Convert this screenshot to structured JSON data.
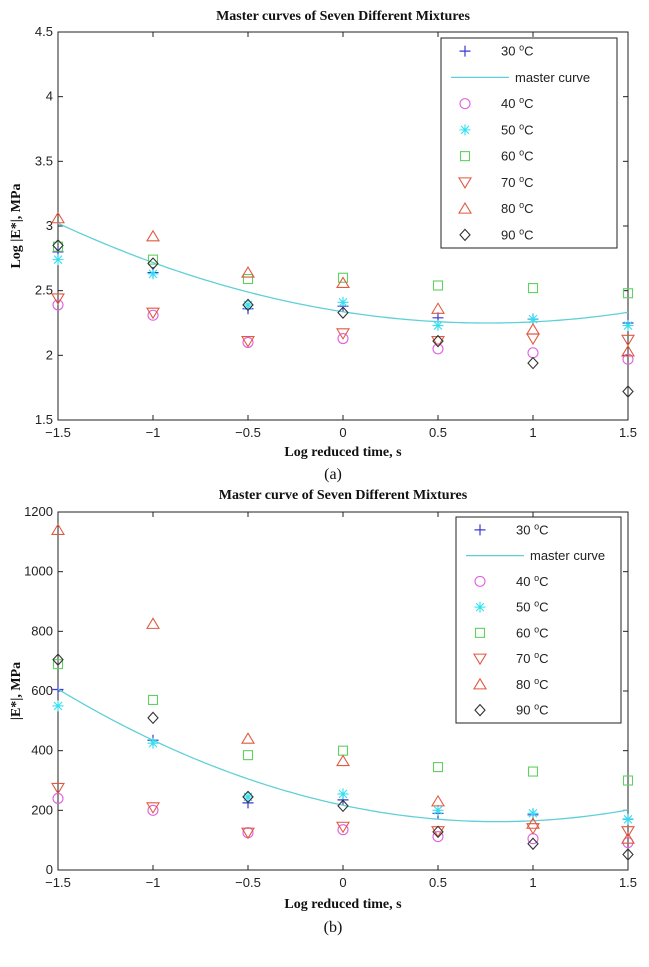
{
  "chart_data": [
    {
      "type": "scatter",
      "title": "Master curves of Seven Different Mixtures",
      "xlabel": "Log reduced time, s",
      "ylabel": "Log |E*|, MPa",
      "xlim": [
        -1.5,
        1.5
      ],
      "ylim": [
        1.5,
        4.5
      ],
      "xticks": [
        "-1.5",
        "-1",
        "-0.5",
        "0",
        "0.5",
        "1",
        "1.5"
      ],
      "yticks": [
        "1.5",
        "2",
        "2.5",
        "3",
        "3.5",
        "4",
        "4.5"
      ],
      "caption": "(a)",
      "legend_position": "top-right",
      "x": [
        -1.5,
        -1,
        -0.5,
        0,
        0.5,
        1,
        1.5
      ],
      "series": [
        {
          "name": "30 °C",
          "marker": "plus",
          "color": "#3a3ad0",
          "values": [
            2.8,
            2.64,
            2.36,
            2.38,
            2.29,
            2.28,
            2.25
          ]
        },
        {
          "name": "master curve",
          "marker": "line",
          "color": "#5fd0d8",
          "curve": {
            "a": 2.337,
            "b": -0.2295,
            "c": 0.151
          }
        },
        {
          "name": "40 °C",
          "marker": "circle",
          "color": "#e060e0",
          "values": [
            2.39,
            2.31,
            2.1,
            2.13,
            2.05,
            2.02,
            1.97
          ]
        },
        {
          "name": "50 °C",
          "marker": "asterisk",
          "color": "#30e0f0",
          "values": [
            2.74,
            2.63,
            2.39,
            2.41,
            2.23,
            2.28,
            2.23
          ]
        },
        {
          "name": "60 °C",
          "marker": "square",
          "color": "#60d060",
          "values": [
            2.84,
            2.74,
            2.59,
            2.6,
            2.54,
            2.52,
            2.48
          ]
        },
        {
          "name": "70 °C",
          "marker": "triangle-down",
          "color": "#e05a40",
          "values": [
            2.44,
            2.33,
            2.11,
            2.17,
            2.11,
            2.13,
            2.12
          ]
        },
        {
          "name": "80 °C",
          "marker": "triangle-up",
          "color": "#e05a40",
          "values": [
            3.06,
            2.92,
            2.64,
            2.56,
            2.36,
            2.2,
            2.03
          ]
        },
        {
          "name": "90 °C",
          "marker": "diamond",
          "color": "#333333",
          "values": [
            2.85,
            2.71,
            2.39,
            2.33,
            2.11,
            1.94,
            1.72
          ]
        }
      ]
    },
    {
      "type": "scatter",
      "title": "Master curve of Seven Different Mixtures",
      "xlabel": "Log reduced time, s",
      "ylabel": "|E*|, MPa",
      "xlim": [
        -1.5,
        1.5
      ],
      "ylim": [
        0,
        1200
      ],
      "xticks": [
        "-1.5",
        "-1",
        "-0.5",
        "0",
        "0.5",
        "1",
        "1.5"
      ],
      "yticks": [
        "0",
        "200",
        "400",
        "600",
        "800",
        "1000",
        "1200"
      ],
      "caption": "(b)",
      "legend_position": "top-right",
      "x": [
        -1.5,
        -1,
        -0.5,
        0,
        0.5,
        1,
        1.5
      ],
      "series": [
        {
          "name": "30 °C",
          "marker": "plus",
          "color": "#3a3ad0",
          "values": [
            605,
            435,
            225,
            235,
            190,
            185,
            170
          ]
        },
        {
          "name": "master curve",
          "marker": "line",
          "color": "#5fd0d8",
          "curve": {
            "a": 217,
            "b": -135,
            "c": 83
          }
        },
        {
          "name": "40 °C",
          "marker": "circle",
          "color": "#e060e0",
          "values": [
            240,
            200,
            125,
            135,
            112,
            105,
            92
          ]
        },
        {
          "name": "50 °C",
          "marker": "asterisk",
          "color": "#30e0f0",
          "values": [
            550,
            425,
            245,
            255,
            200,
            190,
            170
          ]
        },
        {
          "name": "60 °C",
          "marker": "square",
          "color": "#60d060",
          "values": [
            690,
            570,
            385,
            400,
            345,
            330,
            300
          ]
        },
        {
          "name": "70 °C",
          "marker": "triangle-down",
          "color": "#e05a40",
          "values": [
            275,
            210,
            125,
            145,
            130,
            140,
            130
          ]
        },
        {
          "name": "80 °C",
          "marker": "triangle-up",
          "color": "#e05a40",
          "values": [
            1140,
            825,
            440,
            365,
            230,
            155,
            105
          ]
        },
        {
          "name": "90 °C",
          "marker": "diamond",
          "color": "#333333",
          "values": [
            705,
            510,
            245,
            215,
            128,
            88,
            52
          ]
        }
      ]
    }
  ]
}
